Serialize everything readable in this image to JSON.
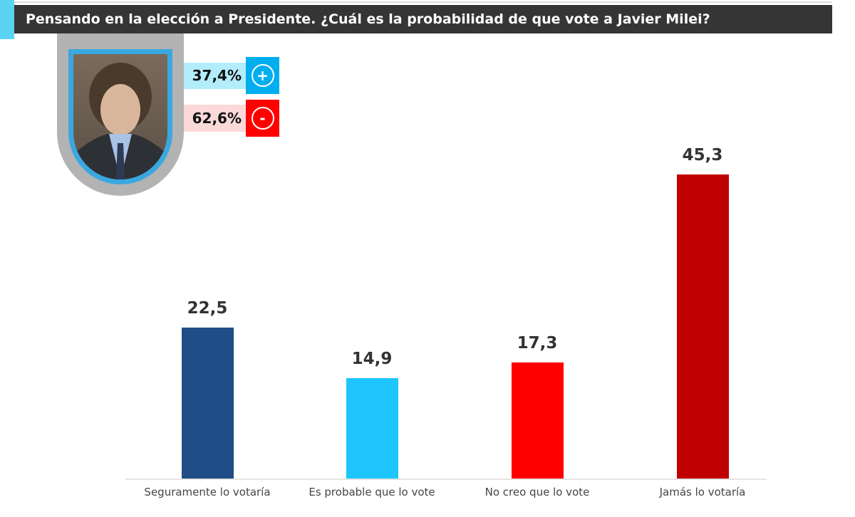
{
  "title": "Pensando en la elección a Presidente. ¿Cuál es la probabilidad de que vote a Javier Milei?",
  "summary": {
    "positive": {
      "value": "37,4%",
      "icon": "plus-circle-icon",
      "color": "#00aeef",
      "bg": "#b3ecfb"
    },
    "negative": {
      "value": "62,6%",
      "icon": "minus-circle-icon",
      "color": "#ff0000",
      "bg": "#fcd9d9"
    },
    "plus_symbol": "+",
    "minus_symbol": "-"
  },
  "chart_data": {
    "type": "bar",
    "title": "",
    "xlabel": "",
    "ylabel": "",
    "ylim": [
      0,
      50
    ],
    "grid": false,
    "categories": [
      "Seguramente lo votaría",
      "Es probable que lo vote",
      "No creo que lo vote",
      "Jamás lo votaría"
    ],
    "values": [
      22.5,
      14.9,
      17.3,
      45.3
    ],
    "value_labels": [
      "22,5",
      "14,9",
      "17,3",
      "45,3"
    ],
    "colors": [
      "#1f4e87",
      "#1fc5fd",
      "#ff0000",
      "#c00000"
    ]
  }
}
